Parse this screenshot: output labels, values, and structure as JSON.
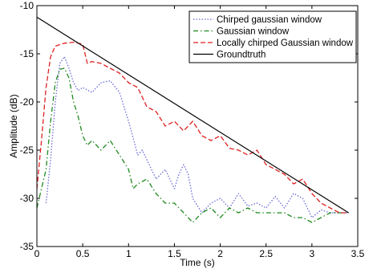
{
  "chart_data": {
    "type": "line",
    "title": "",
    "xlabel": "Time (s)",
    "ylabel": "Amplitude (dB)",
    "xlim": [
      0,
      3.5
    ],
    "ylim": [
      -35,
      -10
    ],
    "xticks": [
      0,
      0.5,
      1,
      1.5,
      2,
      2.5,
      3,
      3.5
    ],
    "yticks": [
      -10,
      -15,
      -20,
      -25,
      -30,
      -35
    ],
    "xtick_labels": [
      "0",
      "0.5",
      "1",
      "1.5",
      "2",
      "2.5",
      "3",
      "3.5"
    ],
    "ytick_labels": [
      "-10",
      "-15",
      "-20",
      "-25",
      "-30",
      "-35"
    ],
    "grid": false,
    "legend_position": "top-right",
    "series": [
      {
        "name": "Chirped gaussian window",
        "color": "#6b6bd6",
        "dash": "dotted",
        "x": [
          0.1,
          0.15,
          0.2,
          0.25,
          0.3,
          0.35,
          0.4,
          0.45,
          0.5,
          0.6,
          0.7,
          0.8,
          0.9,
          1.0,
          1.1,
          1.15,
          1.2,
          1.3,
          1.4,
          1.5,
          1.55,
          1.6,
          1.65,
          1.7,
          1.8,
          1.9,
          2.0,
          2.1,
          2.2,
          2.3,
          2.4,
          2.5,
          2.6,
          2.7,
          2.8,
          2.9,
          3.0,
          3.1,
          3.2,
          3.3,
          3.4
        ],
        "y": [
          -30.5,
          -26.0,
          -20.0,
          -16.0,
          -15.3,
          -16.5,
          -18.0,
          -18.8,
          -18.5,
          -19.0,
          -18.0,
          -17.8,
          -19.0,
          -22.0,
          -25.5,
          -25.0,
          -26.0,
          -28.0,
          -27.0,
          -29.0,
          -27.5,
          -26.5,
          -27.5,
          -30.0,
          -31.5,
          -30.5,
          -30.0,
          -31.0,
          -29.5,
          -30.8,
          -30.5,
          -31.0,
          -29.8,
          -31.0,
          -29.5,
          -30.0,
          -32.0,
          -31.2,
          -31.5,
          -31.5,
          -31.5
        ]
      },
      {
        "name": "Gaussian window",
        "color": "#1f8a1f",
        "dash": "dashdot",
        "x": [
          0.0,
          0.1,
          0.15,
          0.2,
          0.25,
          0.3,
          0.35,
          0.4,
          0.45,
          0.5,
          0.55,
          0.6,
          0.7,
          0.8,
          0.9,
          1.0,
          1.05,
          1.1,
          1.2,
          1.3,
          1.4,
          1.5,
          1.6,
          1.7,
          1.8,
          1.9,
          2.0,
          2.1,
          2.2,
          2.3,
          2.4,
          2.5,
          2.6,
          2.7,
          2.8,
          2.9,
          3.0,
          3.1,
          3.2,
          3.3,
          3.4
        ],
        "y": [
          -31.0,
          -27.0,
          -22.0,
          -18.0,
          -16.6,
          -16.5,
          -17.5,
          -20.0,
          -21.5,
          -23.5,
          -24.5,
          -24.0,
          -25.0,
          -24.0,
          -25.5,
          -27.0,
          -29.0,
          -28.5,
          -28.0,
          -29.5,
          -30.5,
          -30.5,
          -31.5,
          -32.5,
          -31.5,
          -31.0,
          -32.0,
          -31.0,
          -31.5,
          -31.0,
          -31.5,
          -31.5,
          -31.5,
          -31.5,
          -32.0,
          -32.0,
          -32.5,
          -32.0,
          -31.5,
          -31.5,
          -31.5
        ]
      },
      {
        "name": "Locally chirped Gaussian window",
        "color": "#e02020",
        "dash": "dashed",
        "x": [
          0.0,
          0.05,
          0.1,
          0.15,
          0.2,
          0.3,
          0.4,
          0.5,
          0.55,
          0.6,
          0.7,
          0.8,
          0.9,
          1.0,
          1.1,
          1.2,
          1.3,
          1.4,
          1.5,
          1.6,
          1.7,
          1.8,
          1.9,
          2.0,
          2.1,
          2.2,
          2.3,
          2.4,
          2.5,
          2.6,
          2.7,
          2.8,
          2.9,
          3.0,
          3.1,
          3.2,
          3.3,
          3.4
        ],
        "y": [
          -29.0,
          -24.0,
          -18.5,
          -15.3,
          -14.2,
          -13.9,
          -13.8,
          -14.0,
          -16.0,
          -15.8,
          -16.0,
          -16.5,
          -17.0,
          -18.0,
          -18.5,
          -20.5,
          -21.0,
          -22.5,
          -22.0,
          -23.0,
          -22.0,
          -23.5,
          -24.0,
          -23.5,
          -24.8,
          -25.0,
          -25.5,
          -25.0,
          -26.5,
          -27.0,
          -27.5,
          -28.5,
          -28.0,
          -29.5,
          -30.5,
          -31.0,
          -31.5,
          -31.5
        ]
      },
      {
        "name": "Groundtruth",
        "color": "#000000",
        "dash": "solid",
        "x": [
          0.0,
          3.4
        ],
        "y": [
          -11.2,
          -31.5
        ]
      }
    ]
  }
}
